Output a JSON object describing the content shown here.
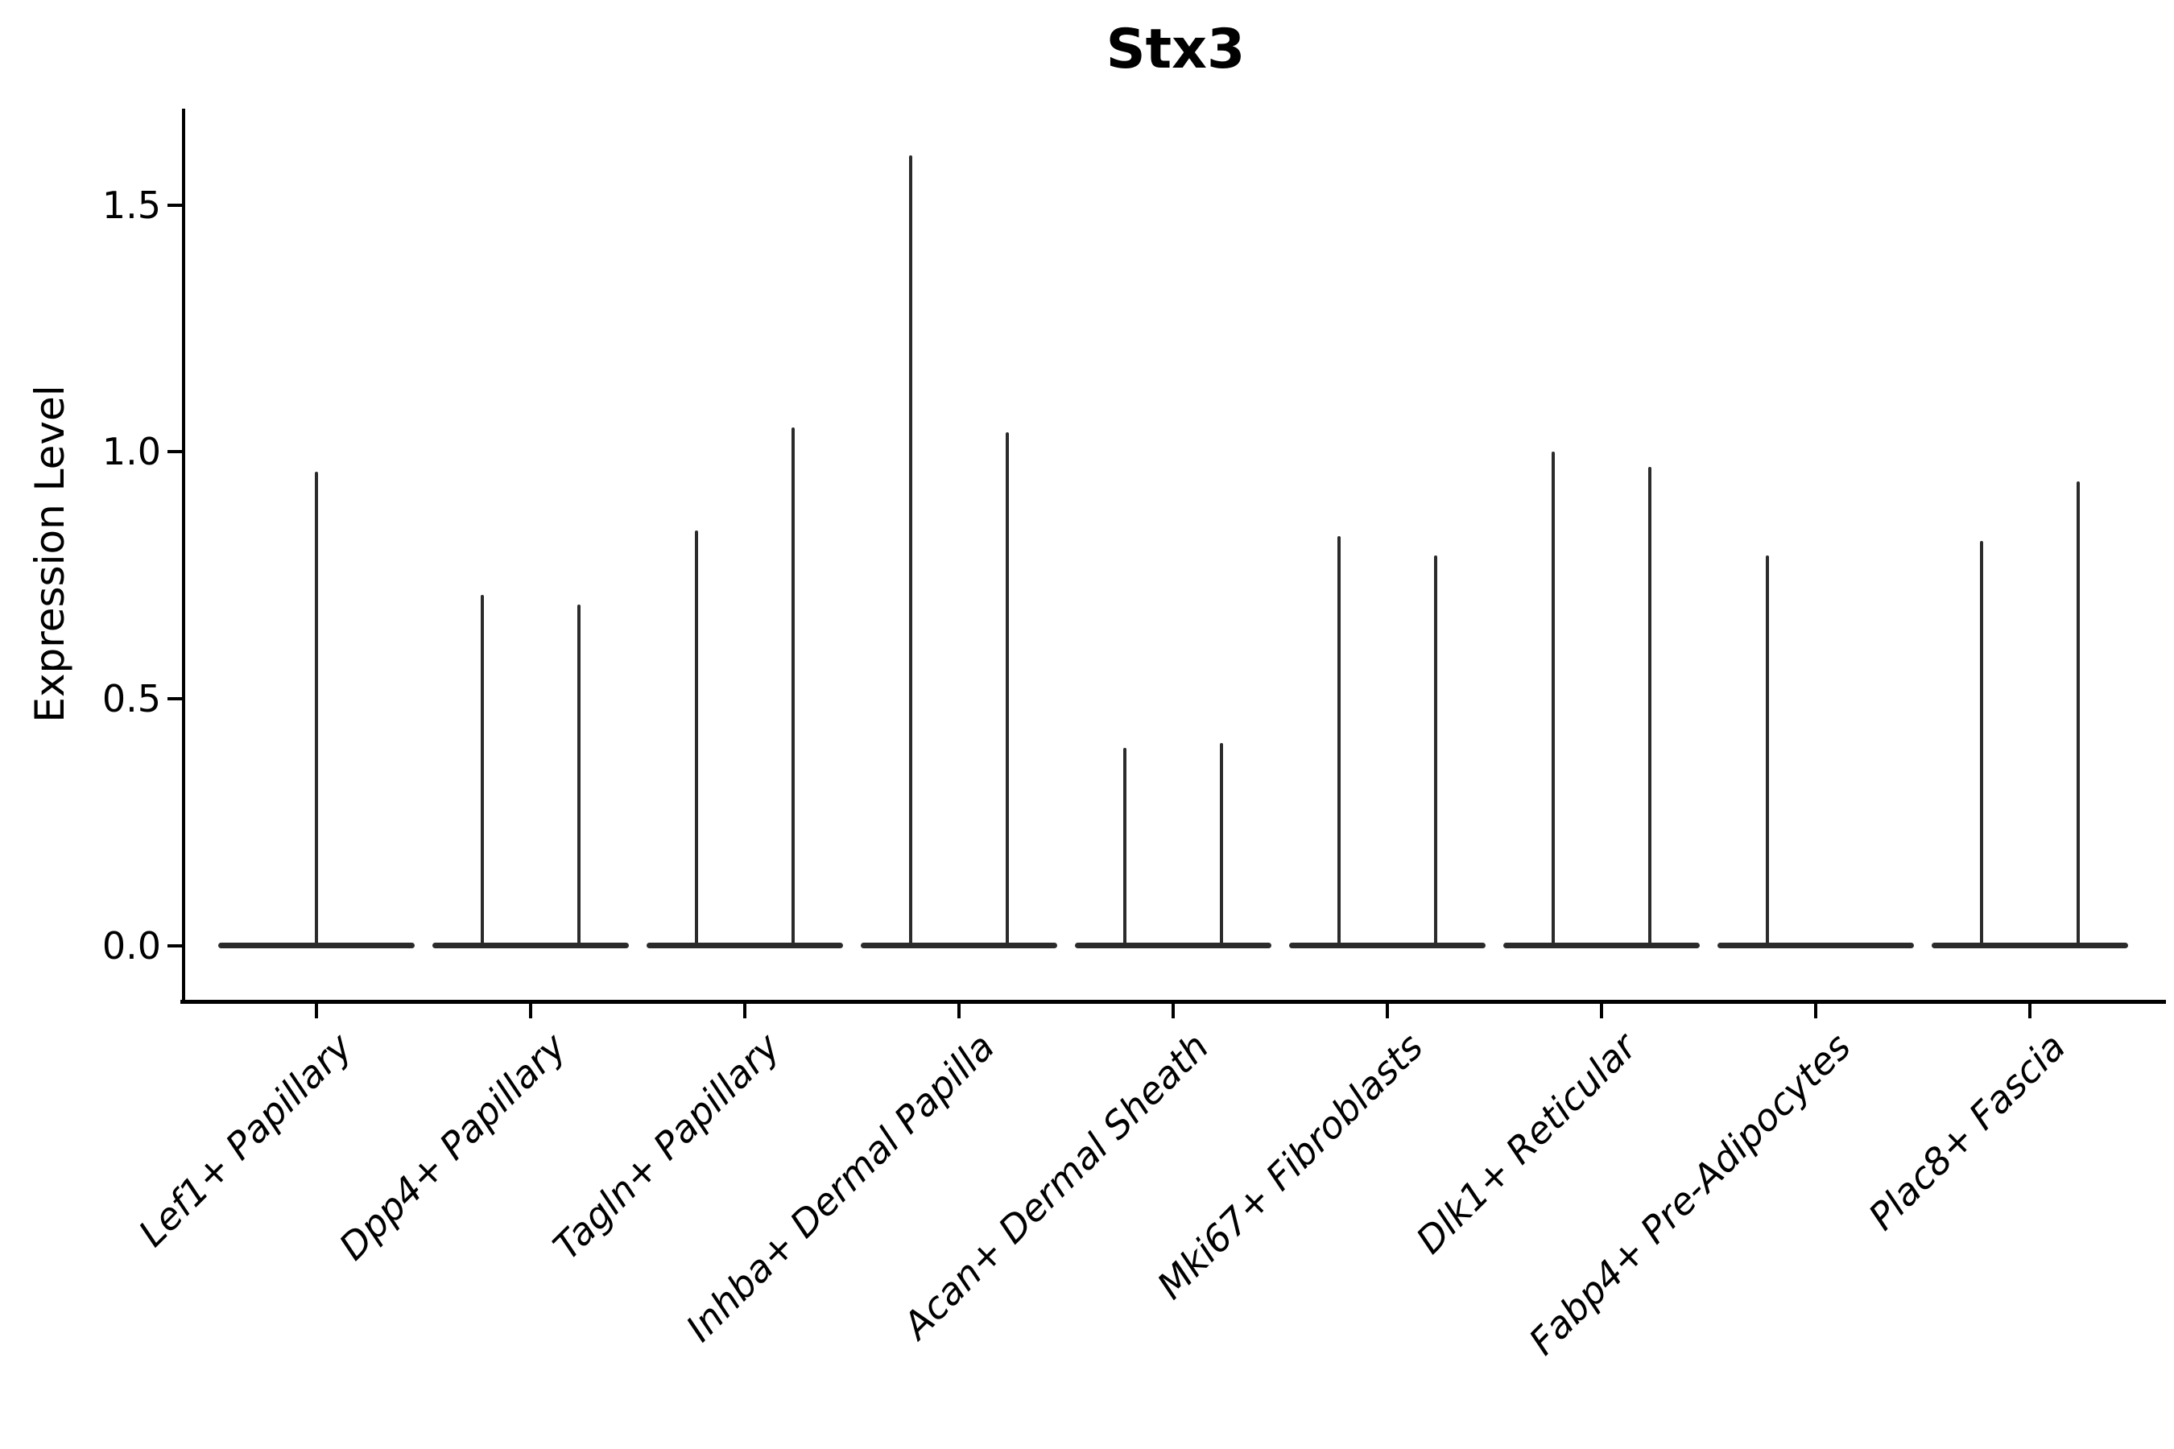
{
  "title": "Stx3",
  "colors": {
    "violin": "#2b2b2b",
    "axis": "#000000",
    "background": "#ffffff"
  },
  "chart_data": {
    "type": "violin",
    "title": "Stx3",
    "ylabel": "Expression Level",
    "xlabel": "",
    "ylim": [
      -0.11,
      1.7
    ],
    "ytick_values": [
      0.0,
      0.5,
      1.0,
      1.5
    ],
    "ytick_labels": [
      "0.0",
      "0.5",
      "1.0",
      "1.5"
    ],
    "grid": false,
    "legend_position": "none",
    "categories": [
      "Lef1+ Papillary",
      "Dpp4+ Papillary",
      "Tagln+ Papillary",
      "Inhba+ Dermal Papilla",
      "Acan+ Dermal Sheath",
      "Mki67+ Fibroblasts",
      "Dlk1+ Reticular",
      "Fabp4+ Pre-Adipocytes",
      "Plac8+ Fascia"
    ],
    "violins": [
      {
        "category": "Lef1+ Papillary",
        "spikes": [
          {
            "position": "center",
            "max": 0.96
          }
        ]
      },
      {
        "category": "Dpp4+ Papillary",
        "spikes": [
          {
            "position": "left",
            "max": 0.71
          },
          {
            "position": "right",
            "max": 0.69
          }
        ]
      },
      {
        "category": "Tagln+ Papillary",
        "spikes": [
          {
            "position": "left",
            "max": 0.84
          },
          {
            "position": "right",
            "max": 1.05
          }
        ]
      },
      {
        "category": "Inhba+ Dermal Papilla",
        "spikes": [
          {
            "position": "left",
            "max": 1.6
          },
          {
            "position": "right",
            "max": 1.04
          }
        ]
      },
      {
        "category": "Acan+ Dermal Sheath",
        "spikes": [
          {
            "position": "left",
            "max": 0.4
          },
          {
            "position": "right",
            "max": 0.41
          }
        ]
      },
      {
        "category": "Mki67+ Fibroblasts",
        "spikes": [
          {
            "position": "left",
            "max": 0.83
          },
          {
            "position": "right",
            "max": 0.79
          }
        ]
      },
      {
        "category": "Dlk1+ Reticular",
        "spikes": [
          {
            "position": "left",
            "max": 1.0
          },
          {
            "position": "right",
            "max": 0.97
          }
        ]
      },
      {
        "category": "Fabp4+ Pre-Adipocytes",
        "spikes": [
          {
            "position": "left",
            "max": 0.79
          },
          {
            "position": "right",
            "max": 0.0
          }
        ]
      },
      {
        "category": "Plac8+ Fascia",
        "spikes": [
          {
            "position": "left",
            "max": 0.82
          },
          {
            "position": "right",
            "max": 0.94
          }
        ]
      }
    ]
  }
}
